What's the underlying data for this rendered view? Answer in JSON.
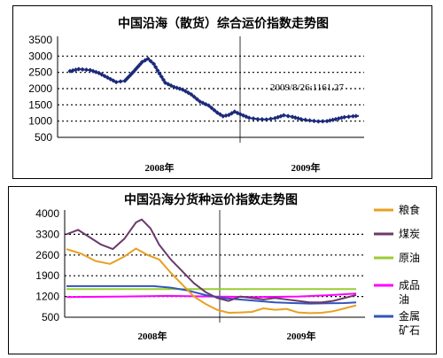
{
  "chart_data": [
    {
      "type": "line",
      "title": "中国沿海（散货）综合运价指数走势图",
      "y_ticks": [
        "3500",
        "3000",
        "2500",
        "2000",
        "1500",
        "1000",
        "500"
      ],
      "ylim": [
        500,
        3500
      ],
      "x_ticks": [
        "2008年",
        "2009年"
      ],
      "grid": "horizontal dashed",
      "annotation": "2009/8/26:1161.27",
      "series": [
        {
          "color": "#1c2a7a",
          "marker": "diamond",
          "points": [
            [
              0,
              2540
            ],
            [
              0.03,
              2600
            ],
            [
              0.07,
              2570
            ],
            [
              0.1,
              2480
            ],
            [
              0.13,
              2340
            ],
            [
              0.16,
              2200
            ],
            [
              0.19,
              2240
            ],
            [
              0.22,
              2520
            ],
            [
              0.25,
              2820
            ],
            [
              0.27,
              2920
            ],
            [
              0.29,
              2760
            ],
            [
              0.31,
              2460
            ],
            [
              0.33,
              2180
            ],
            [
              0.36,
              2050
            ],
            [
              0.39,
              1970
            ],
            [
              0.42,
              1820
            ],
            [
              0.45,
              1600
            ],
            [
              0.48,
              1480
            ],
            [
              0.51,
              1260
            ],
            [
              0.53,
              1150
            ],
            [
              0.55,
              1190
            ],
            [
              0.57,
              1290
            ],
            [
              0.59,
              1210
            ],
            [
              0.62,
              1100
            ],
            [
              0.65,
              1060
            ],
            [
              0.68,
              1050
            ],
            [
              0.71,
              1090
            ],
            [
              0.74,
              1180
            ],
            [
              0.77,
              1130
            ],
            [
              0.8,
              1060
            ],
            [
              0.83,
              1020
            ],
            [
              0.86,
              990
            ],
            [
              0.89,
              1000
            ],
            [
              0.92,
              1060
            ],
            [
              0.95,
              1120
            ],
            [
              0.98,
              1150
            ],
            [
              1.0,
              1161.27
            ]
          ]
        }
      ]
    },
    {
      "type": "line",
      "title": "中国沿海分货种运价指数走势图",
      "y_ticks": [
        "4000",
        "3300",
        "2600",
        "1900",
        "1200",
        "500"
      ],
      "ylim": [
        500,
        4000
      ],
      "x_ticks": [
        "2008年",
        "2009年"
      ],
      "grid": "horizontal dashed",
      "legend_position": "right",
      "series": [
        {
          "name": "粮食",
          "color": "#e8a020",
          "points": [
            [
              0,
              2800
            ],
            [
              0.05,
              2650
            ],
            [
              0.1,
              2400
            ],
            [
              0.15,
              2300
            ],
            [
              0.2,
              2550
            ],
            [
              0.24,
              2820
            ],
            [
              0.28,
              2600
            ],
            [
              0.32,
              2450
            ],
            [
              0.36,
              2000
            ],
            [
              0.4,
              1600
            ],
            [
              0.44,
              1200
            ],
            [
              0.48,
              950
            ],
            [
              0.52,
              750
            ],
            [
              0.56,
              650
            ],
            [
              0.6,
              660
            ],
            [
              0.64,
              680
            ],
            [
              0.68,
              800
            ],
            [
              0.72,
              750
            ],
            [
              0.76,
              780
            ],
            [
              0.8,
              660
            ],
            [
              0.84,
              640
            ],
            [
              0.88,
              650
            ],
            [
              0.92,
              700
            ],
            [
              0.96,
              800
            ],
            [
              1.0,
              900
            ]
          ]
        },
        {
          "name": "煤炭",
          "color": "#6a3a6a",
          "points": [
            [
              0,
              3300
            ],
            [
              0.04,
              3450
            ],
            [
              0.08,
              3200
            ],
            [
              0.12,
              2950
            ],
            [
              0.16,
              2800
            ],
            [
              0.2,
              3150
            ],
            [
              0.24,
              3700
            ],
            [
              0.26,
              3800
            ],
            [
              0.29,
              3500
            ],
            [
              0.32,
              2950
            ],
            [
              0.36,
              2450
            ],
            [
              0.4,
              2050
            ],
            [
              0.44,
              1650
            ],
            [
              0.48,
              1350
            ],
            [
              0.52,
              1150
            ],
            [
              0.56,
              1050
            ],
            [
              0.6,
              1200
            ],
            [
              0.64,
              1150
            ],
            [
              0.68,
              1100
            ],
            [
              0.72,
              1150
            ],
            [
              0.76,
              1100
            ],
            [
              0.8,
              1050
            ],
            [
              0.84,
              1000
            ],
            [
              0.88,
              1000
            ],
            [
              0.92,
              1050
            ],
            [
              0.96,
              1150
            ],
            [
              1.0,
              1250
            ]
          ]
        },
        {
          "name": "原油",
          "color": "#99cc33",
          "points": [
            [
              0,
              1450
            ],
            [
              0.2,
              1450
            ],
            [
              0.4,
              1450
            ],
            [
              0.6,
              1450
            ],
            [
              0.8,
              1450
            ],
            [
              1.0,
              1450
            ]
          ]
        },
        {
          "name": "成品油",
          "color": "#ff00ff",
          "points": [
            [
              0,
              1180
            ],
            [
              0.2,
              1200
            ],
            [
              0.35,
              1220
            ],
            [
              0.5,
              1200
            ],
            [
              0.65,
              1180
            ],
            [
              0.8,
              1200
            ],
            [
              0.9,
              1240
            ],
            [
              1.0,
              1300
            ]
          ]
        },
        {
          "name": "金属矿石",
          "color": "#3355bb",
          "points": [
            [
              0,
              1550
            ],
            [
              0.1,
              1550
            ],
            [
              0.2,
              1550
            ],
            [
              0.3,
              1550
            ],
            [
              0.36,
              1500
            ],
            [
              0.42,
              1400
            ],
            [
              0.48,
              1250
            ],
            [
              0.54,
              1150
            ],
            [
              0.6,
              1100
            ],
            [
              0.66,
              1050
            ],
            [
              0.72,
              1000
            ],
            [
              0.78,
              980
            ],
            [
              0.84,
              960
            ],
            [
              0.9,
              970
            ],
            [
              0.96,
              980
            ],
            [
              1.0,
              1000
            ]
          ]
        }
      ]
    }
  ]
}
